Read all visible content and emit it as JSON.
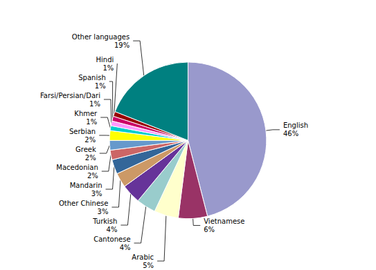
{
  "chart_data": {
    "type": "pie",
    "categories": [
      "English",
      "Vietnamese",
      "Arabic",
      "Cantonese",
      "Turkish",
      "Other Chinese",
      "Mandarin",
      "Macedonian",
      "Greek",
      "Serbian",
      "Khmer",
      "Farsi/Persian/Dari",
      "Spanish",
      "Hindi",
      "Other languages"
    ],
    "values": [
      46,
      6,
      5,
      4,
      4,
      3,
      3,
      2,
      2,
      2,
      1,
      1,
      1,
      1,
      19
    ],
    "value_labels": [
      "46%",
      "6%",
      "5%",
      "4%",
      "4%",
      "3%",
      "3%",
      "2%",
      "2%",
      "2%",
      "1%",
      "1%",
      "1%",
      "1%",
      "19%"
    ],
    "colors": [
      "#9999cc",
      "#993366",
      "#ffffcc",
      "#99cccc",
      "#663399",
      "#cc9966",
      "#336699",
      "#cc6666",
      "#6699cc",
      "#ffff00",
      "#00cccc",
      "#ff99ff",
      "#cc0066",
      "#990000",
      "#008080"
    ],
    "data_labels": true
  }
}
